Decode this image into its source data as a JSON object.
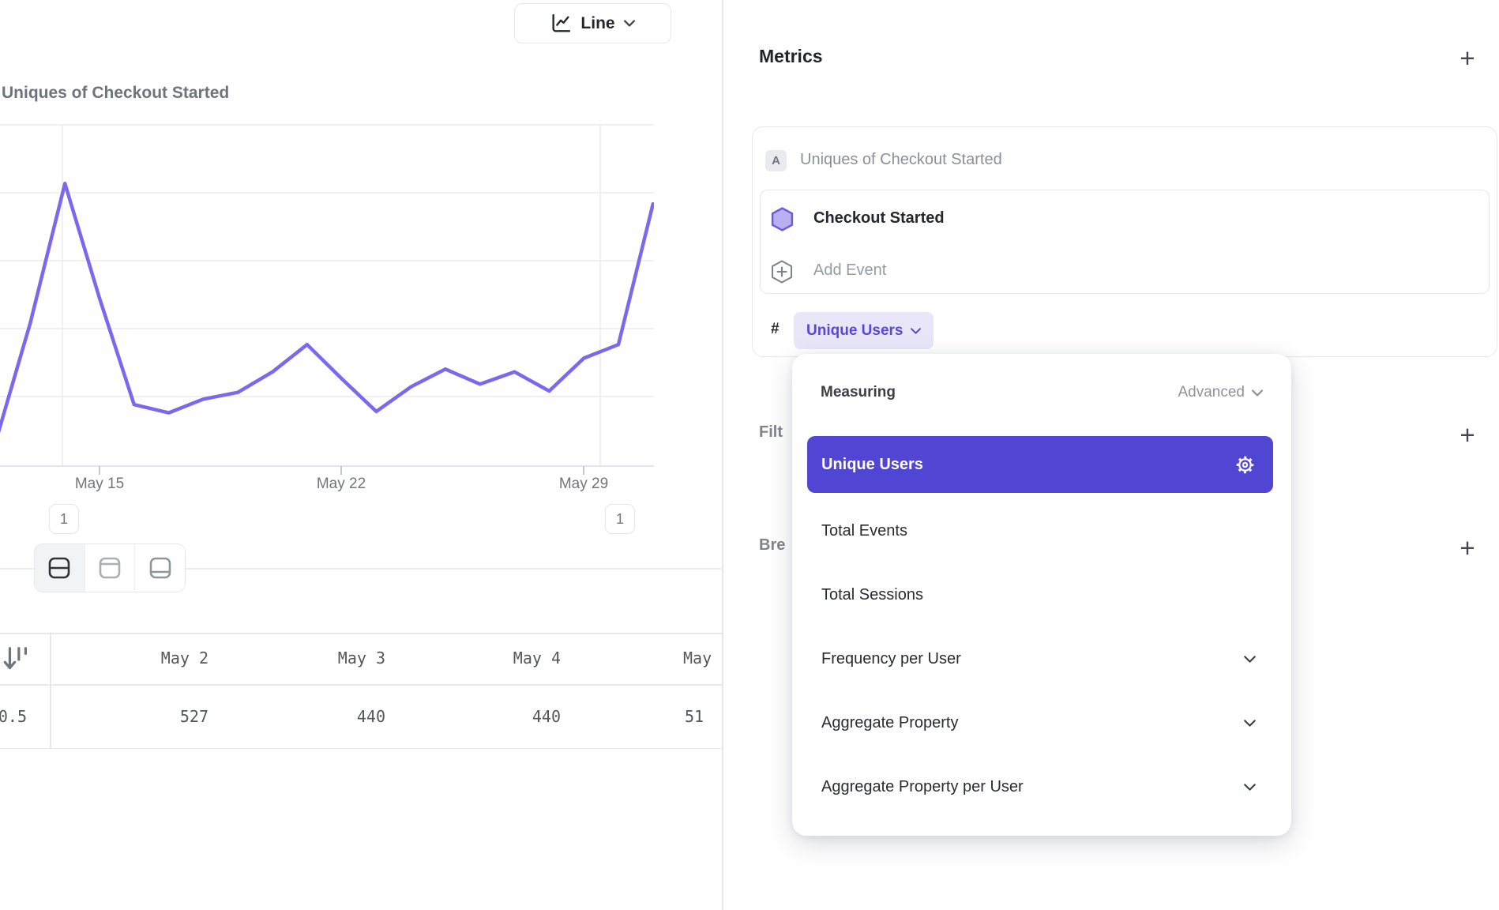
{
  "toolbar": {
    "chart_type": "Line"
  },
  "chart": {
    "title": "Uniques of Checkout Started",
    "annotations": [
      "1",
      "1"
    ],
    "line_color": "#7b68ee"
  },
  "chart_data": {
    "type": "line",
    "title": "Uniques of Checkout Started",
    "series_name": "Uniques of Checkout Started",
    "x": [
      "May 12",
      "May 13",
      "May 14",
      "May 15",
      "May 16",
      "May 17",
      "May 18",
      "May 19",
      "May 20",
      "May 21",
      "May 22",
      "May 23",
      "May 24",
      "May 25",
      "May 26",
      "May 27",
      "May 28",
      "May 29",
      "May 30",
      "May 31"
    ],
    "values": [
      90,
      525,
      1035,
      615,
      225,
      195,
      245,
      270,
      345,
      445,
      320,
      200,
      290,
      355,
      300,
      345,
      275,
      395,
      445,
      960
    ],
    "x_tick_labels": [
      "May 15",
      "May 22",
      "May 29"
    ],
    "xlabel": "",
    "ylabel": "",
    "ylim": [
      0,
      1270
    ],
    "grid": "horizontal",
    "legend": "none",
    "line_color": "#7b68ee"
  },
  "table": {
    "columns": [
      "May 2",
      "May 3",
      "May 4",
      "May"
    ],
    "values": [
      "0.5",
      "527",
      "440",
      "440",
      "51"
    ]
  },
  "metrics": {
    "title": "Metrics",
    "add_label": "+",
    "card": {
      "series_letter": "A",
      "series_name": "Uniques of Checkout Started",
      "event_name": "Checkout Started",
      "add_event": "Add Event",
      "count_prefix": "#",
      "measure": "Unique Users"
    },
    "filters_label": "Filt",
    "filters_add": "+",
    "breakdowns_label": "Bre",
    "breakdowns_add": "+"
  },
  "dropdown": {
    "header_label": "Measuring",
    "mode_label": "Advanced",
    "options": [
      {
        "label": "Unique Users",
        "selected": true
      },
      {
        "label": "Total Events"
      },
      {
        "label": "Total Sessions"
      },
      {
        "label": "Frequency per User",
        "expandable": true
      },
      {
        "label": "Aggregate Property",
        "expandable": true
      },
      {
        "label": "Aggregate Property per User",
        "expandable": true
      }
    ]
  },
  "colors": {
    "accent": "#5146d4",
    "accent_light_bg": "#e9e6fa",
    "accent_text": "#5948d8",
    "line": "#7b68ee",
    "hexagon_fill": "#b9b0f2",
    "hexagon_stroke": "#6a5be0"
  }
}
